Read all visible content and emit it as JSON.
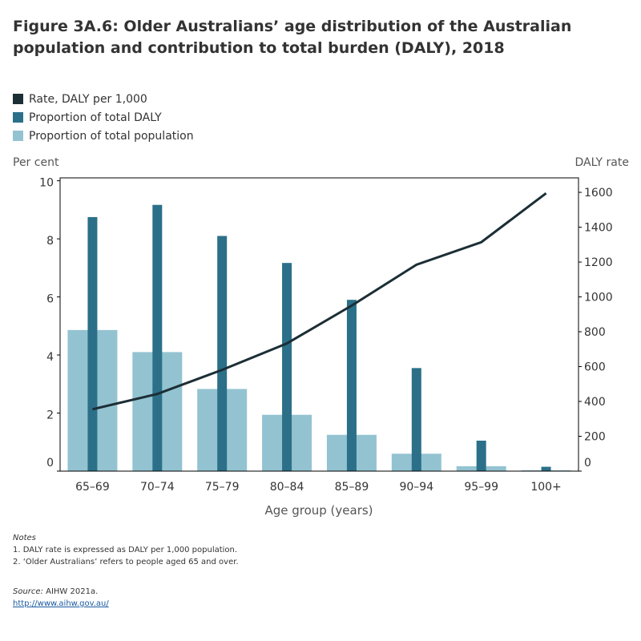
{
  "title": "Figure 3A.6: Older Australians’ age distribution of the Australian population and contribution to total burden (DALY), 2018",
  "legend": [
    {
      "label": "Rate, DALY per 1,000",
      "color": "#1c2e36"
    },
    {
      "label": "Proportion of total DALY",
      "color": "#2b7088"
    },
    {
      "label": "Proportion of total population",
      "color": "#93c3d1"
    }
  ],
  "notes": {
    "heading": "Notes",
    "items": [
      "1. DALY rate is expressed as DALY per 1,000 population.",
      "2. ‘Older Australians’ refers to people aged 65 and over."
    ],
    "source_label": "Source:",
    "source": " AIHW 2021a.",
    "link": "http://www.aihw.gov.au/"
  },
  "chart_data": {
    "type": "bar",
    "title": "Figure 3A.6: Older Australians’ age distribution of the Australian population and contribution to total burden (DALY), 2018",
    "xlabel": "Age group (years)",
    "ylabel": "Per cent",
    "y2label": "DALY rate",
    "categories": [
      "65–69",
      "70–74",
      "75–79",
      "80–84",
      "85–89",
      "90–94",
      "95–99",
      "100+"
    ],
    "ylim": [
      0,
      10.1
    ],
    "y2lim": [
      0,
      1683
    ],
    "yticks": [
      0,
      2,
      4,
      6,
      8,
      10
    ],
    "y2ticks": [
      0,
      200,
      400,
      600,
      800,
      1000,
      1200,
      1400,
      1600
    ],
    "grid": false,
    "legend_position": "top-left",
    "series": [
      {
        "name": "Proportion of total population",
        "type": "bar",
        "axis": "left",
        "values": [
          4.86,
          4.1,
          2.83,
          1.94,
          1.25,
          0.6,
          0.17,
          0.03
        ]
      },
      {
        "name": "Proportion of total DALY",
        "type": "bar",
        "axis": "left",
        "values": [
          8.75,
          9.17,
          8.1,
          7.17,
          5.9,
          3.55,
          1.05,
          0.15
        ]
      },
      {
        "name": "Rate, DALY per 1,000",
        "type": "line",
        "axis": "right",
        "values": [
          355,
          443,
          581,
          733,
          950,
          1185,
          1314,
          1595
        ]
      }
    ]
  }
}
